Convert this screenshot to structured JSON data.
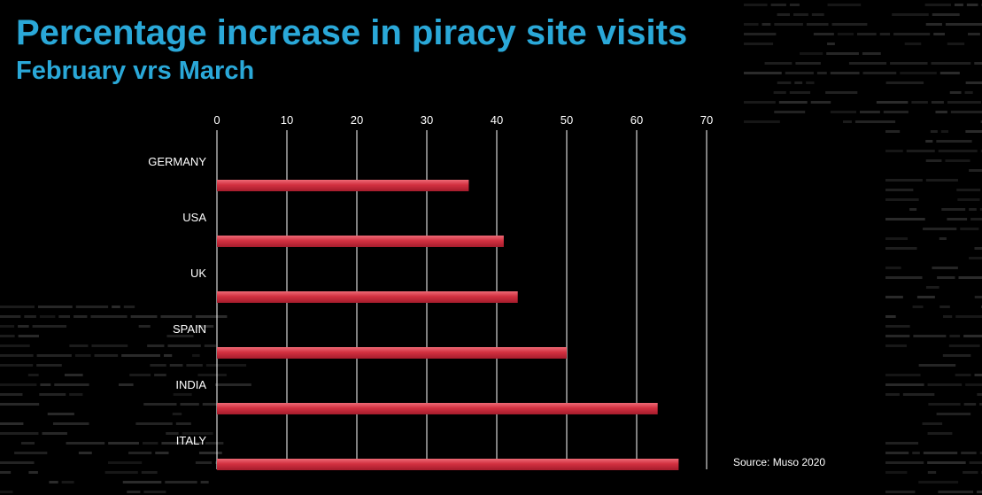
{
  "chart_data": {
    "type": "bar",
    "orientation": "horizontal",
    "title": "Percentage increase in piracy site visits",
    "subtitle": "February vrs March",
    "categories": [
      "GERMANY",
      "USA",
      "UK",
      "SPAIN",
      "INDIA",
      "ITALY"
    ],
    "values": [
      36,
      41,
      43,
      50,
      63,
      66
    ],
    "xlim": [
      0,
      70
    ],
    "xticks": [
      0,
      10,
      20,
      30,
      40,
      50,
      60,
      70
    ],
    "x_axis_position": "top",
    "grid": true,
    "legend": "none",
    "source": "Source: Muso 2020"
  },
  "colors": {
    "background": "#000000",
    "title": "#2aa8d8",
    "bar": "#d23040",
    "bar_highlight": "#ee6a76",
    "gridline": "#ffffff",
    "text": "#ffffff"
  }
}
